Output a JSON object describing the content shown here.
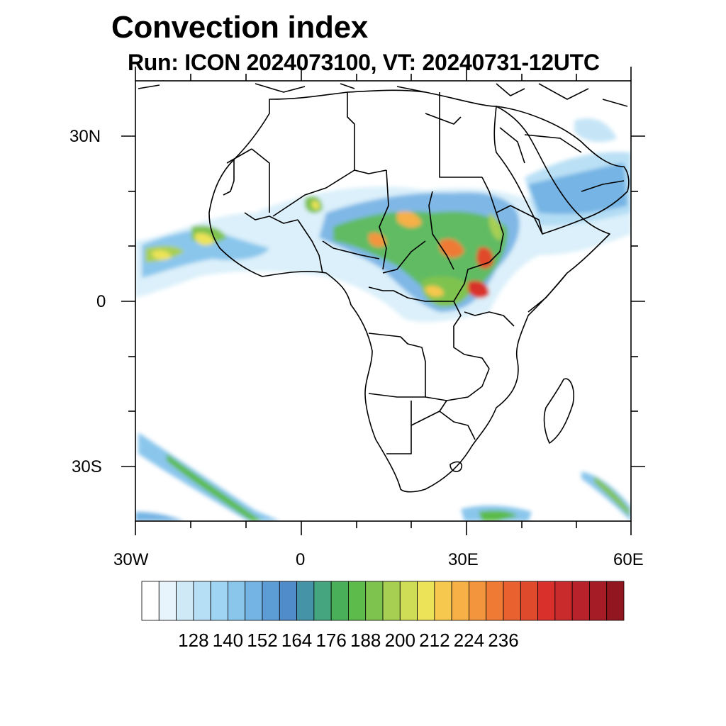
{
  "title": "Convection index",
  "subtitle": "Run: ICON 2024073100,  VT: 20240731-12UTC",
  "axes": {
    "lat_labels": [
      "30N",
      "0",
      "30S"
    ],
    "lon_labels": [
      "30W",
      "0",
      "30E",
      "60E"
    ]
  },
  "colorbar": {
    "labels": [
      "128",
      "140",
      "152",
      "164",
      "176",
      "188",
      "200",
      "212",
      "224",
      "236"
    ],
    "colors": [
      "#ffffff",
      "#e8f4fb",
      "#cfe9f7",
      "#b6def5",
      "#9fd5f2",
      "#8ac6ec",
      "#74b4e4",
      "#5c9dd6",
      "#4f8cc9",
      "#4593a6",
      "#45a57e",
      "#49b059",
      "#5cbb4a",
      "#7fc34f",
      "#a7cf52",
      "#cfdc55",
      "#ece359",
      "#f6c84e",
      "#f6b046",
      "#f3953c",
      "#ee7a34",
      "#e8612e",
      "#e04a2c",
      "#d9302c",
      "#c92a2c",
      "#b8222a",
      "#a61c26",
      "#911620"
    ]
  }
}
